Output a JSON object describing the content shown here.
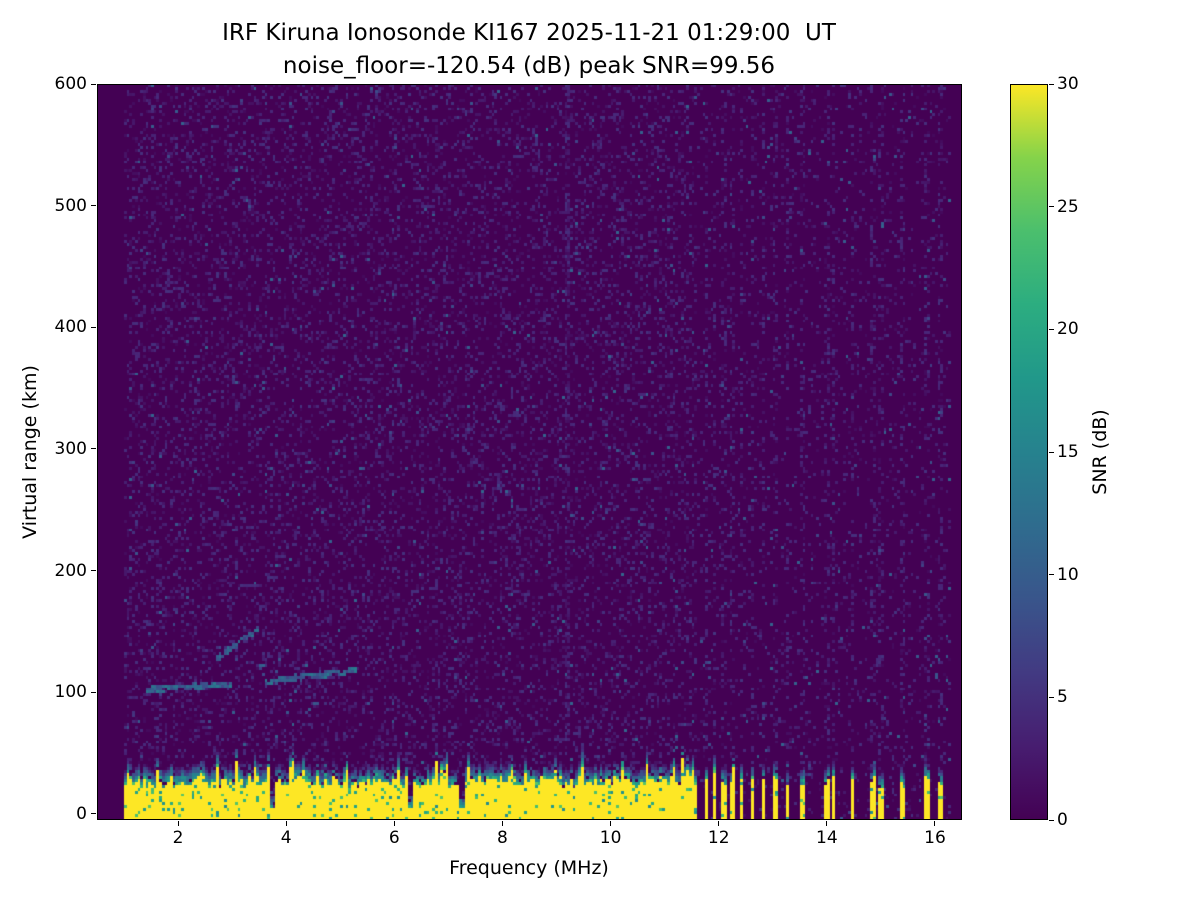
{
  "chart_data": {
    "type": "heatmap",
    "title_line1": "IRF Kiruna Ionosonde KI167 2025-11-21 01:29:00  UT",
    "title_line2": "noise_floor=-120.54 (dB) peak SNR=99.56",
    "station": "IRF Kiruna Ionosonde KI167",
    "timestamp_ut": "2025-11-21 01:29:00",
    "noise_floor_db": -120.54,
    "peak_snr_db": 99.56,
    "xlabel": "Frequency (MHz)",
    "ylabel": "Virtual range (km)",
    "colorbar_label": "SNR (dB)",
    "colormap": "viridis",
    "xlim": [
      0.5,
      16.5
    ],
    "ylim": [
      -5,
      600
    ],
    "x_ticks": [
      2,
      4,
      6,
      8,
      10,
      12,
      14,
      16
    ],
    "y_ticks": [
      0,
      100,
      200,
      300,
      400,
      500,
      600
    ],
    "colorbar_ticks": [
      0,
      5,
      10,
      15,
      20,
      25,
      30
    ],
    "snr_range_db": [
      0,
      30
    ],
    "data_extent": {
      "freq_mhz": [
        1.0,
        16.3
      ],
      "range_km": [
        -5,
        600
      ]
    },
    "features": {
      "background_noise": {
        "snr_db": [
          0,
          5
        ],
        "speckle_density": 0.2,
        "high_band_density": 0.08,
        "high_band_start_mhz": 11.62
      },
      "ground_clutter": {
        "freq_mhz": [
          1.0,
          11.62
        ],
        "top_km_mean": 28,
        "snr_db": 30
      },
      "clutter_notches_mhz": [
        3.75,
        6.3,
        7.25
      ],
      "rfi_bars_mhz": [
        11.77,
        11.93,
        12.1,
        12.26,
        12.43,
        12.62,
        12.82,
        13.04,
        13.28,
        13.54,
        13.99,
        14.12,
        14.47,
        14.84,
        14.99,
        15.41,
        15.86,
        16.1
      ],
      "echo_traces": [
        {
          "f0_mhz": 1.4,
          "f1_mhz": 3.0,
          "h0_km": 102,
          "h1_km": 107,
          "snr_db": 11
        },
        {
          "f0_mhz": 3.6,
          "f1_mhz": 5.3,
          "h0_km": 109,
          "h1_km": 118,
          "snr_db": 11
        },
        {
          "f0_mhz": 2.7,
          "f1_mhz": 3.5,
          "h0_km": 127,
          "h1_km": 153,
          "snr_db": 10
        }
      ],
      "vertical_stripe": {
        "freq_mhz": 9.2,
        "range_km": [
          55,
          600
        ],
        "snr_db": 7
      }
    }
  }
}
